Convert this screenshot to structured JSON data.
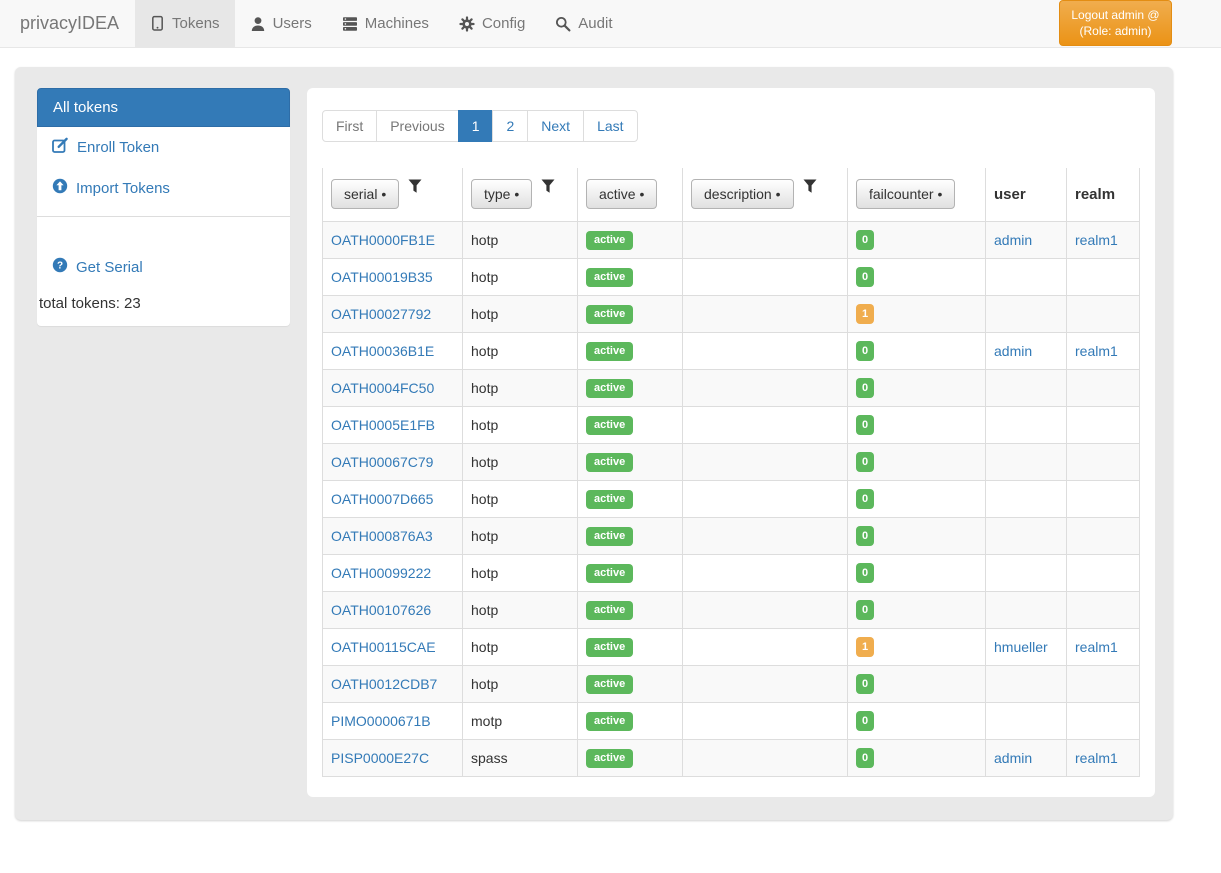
{
  "navbar": {
    "brand": "privacyIDEA",
    "items": [
      {
        "label": "Tokens",
        "icon": "tablet-icon",
        "active": true
      },
      {
        "label": "Users",
        "icon": "user-icon",
        "active": false
      },
      {
        "label": "Machines",
        "icon": "server-icon",
        "active": false
      },
      {
        "label": "Config",
        "icon": "gear-icon",
        "active": false
      },
      {
        "label": "Audit",
        "icon": "search-icon",
        "active": false
      }
    ],
    "logout_label": "Logout admin @ (Role: admin)"
  },
  "sidebar": {
    "items": [
      {
        "label": "All tokens",
        "icon": "",
        "active": true
      },
      {
        "label": "Enroll Token",
        "icon": "edit-icon",
        "active": false
      },
      {
        "label": "Import Tokens",
        "icon": "upload-circle-icon",
        "active": false
      },
      {
        "label": "Get Serial",
        "icon": "question-circle-icon",
        "active": false
      }
    ],
    "total_tokens_label": "total tokens: 23"
  },
  "pagination": {
    "items": [
      {
        "label": "First",
        "state": "disabled"
      },
      {
        "label": "Previous",
        "state": "disabled"
      },
      {
        "label": "1",
        "state": "active"
      },
      {
        "label": "2",
        "state": "link"
      },
      {
        "label": "Next",
        "state": "link"
      },
      {
        "label": "Last",
        "state": "link"
      }
    ]
  },
  "table": {
    "headers": [
      {
        "label": "serial •",
        "button": true,
        "filter": true
      },
      {
        "label": "type •",
        "button": true,
        "filter": true
      },
      {
        "label": "active •",
        "button": true,
        "filter": false
      },
      {
        "label": "description •",
        "button": true,
        "filter": true
      },
      {
        "label": "failcounter •",
        "button": true,
        "filter": false
      },
      {
        "label": "user",
        "button": false,
        "filter": false
      },
      {
        "label": "realm",
        "button": false,
        "filter": false
      }
    ],
    "rows": [
      {
        "serial": "OATH0000FB1E",
        "type": "hotp",
        "active": "active",
        "description": "",
        "failcounter": "0",
        "user": "admin",
        "realm": "realm1"
      },
      {
        "serial": "OATH00019B35",
        "type": "hotp",
        "active": "active",
        "description": "",
        "failcounter": "0",
        "user": "",
        "realm": ""
      },
      {
        "serial": "OATH00027792",
        "type": "hotp",
        "active": "active",
        "description": "",
        "failcounter": "1",
        "user": "",
        "realm": ""
      },
      {
        "serial": "OATH00036B1E",
        "type": "hotp",
        "active": "active",
        "description": "",
        "failcounter": "0",
        "user": "admin",
        "realm": "realm1"
      },
      {
        "serial": "OATH0004FC50",
        "type": "hotp",
        "active": "active",
        "description": "",
        "failcounter": "0",
        "user": "",
        "realm": ""
      },
      {
        "serial": "OATH0005E1FB",
        "type": "hotp",
        "active": "active",
        "description": "",
        "failcounter": "0",
        "user": "",
        "realm": ""
      },
      {
        "serial": "OATH00067C79",
        "type": "hotp",
        "active": "active",
        "description": "",
        "failcounter": "0",
        "user": "",
        "realm": ""
      },
      {
        "serial": "OATH0007D665",
        "type": "hotp",
        "active": "active",
        "description": "",
        "failcounter": "0",
        "user": "",
        "realm": ""
      },
      {
        "serial": "OATH000876A3",
        "type": "hotp",
        "active": "active",
        "description": "",
        "failcounter": "0",
        "user": "",
        "realm": ""
      },
      {
        "serial": "OATH00099222",
        "type": "hotp",
        "active": "active",
        "description": "",
        "failcounter": "0",
        "user": "",
        "realm": ""
      },
      {
        "serial": "OATH00107626",
        "type": "hotp",
        "active": "active",
        "description": "",
        "failcounter": "0",
        "user": "",
        "realm": ""
      },
      {
        "serial": "OATH00115CAE",
        "type": "hotp",
        "active": "active",
        "description": "",
        "failcounter": "1",
        "user": "hmueller",
        "realm": "realm1"
      },
      {
        "serial": "OATH0012CDB7",
        "type": "hotp",
        "active": "active",
        "description": "",
        "failcounter": "0",
        "user": "",
        "realm": ""
      },
      {
        "serial": "PIMO0000671B",
        "type": "motp",
        "active": "active",
        "description": "",
        "failcounter": "0",
        "user": "",
        "realm": ""
      },
      {
        "serial": "PISP0000E27C",
        "type": "spass",
        "active": "active",
        "description": "",
        "failcounter": "0",
        "user": "admin",
        "realm": "realm1"
      }
    ]
  },
  "colors": {
    "accent_blue": "#337ab7",
    "success_green": "#5cb85c",
    "warning_orange": "#f0ad4e",
    "navbar_bg": "#f8f8f8",
    "navbar_active_bg": "#e7e7e7",
    "container_bg": "#e9e9e9",
    "border": "#dddddd",
    "text": "#333333",
    "muted_text": "#777777"
  }
}
